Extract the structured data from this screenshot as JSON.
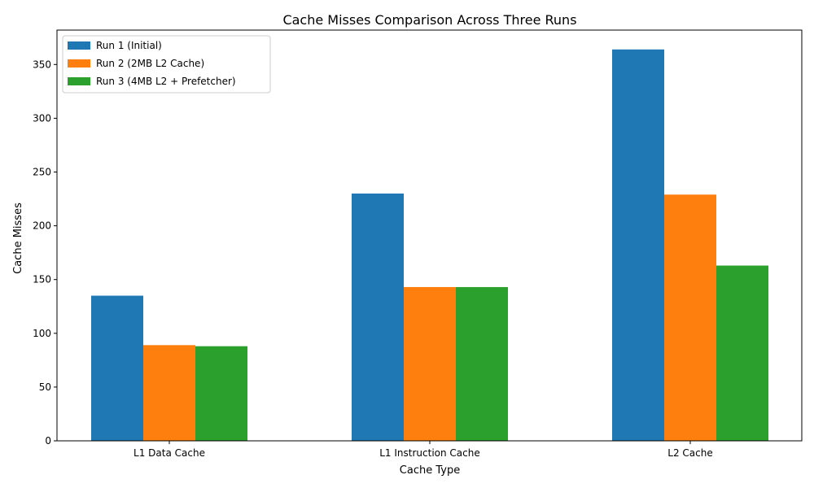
{
  "chart_data": {
    "type": "bar",
    "title": "Cache Misses Comparison Across Three Runs",
    "xlabel": "Cache Type",
    "ylabel": "Cache Misses",
    "categories": [
      "L1 Data Cache",
      "L1 Instruction Cache",
      "L2 Cache"
    ],
    "series": [
      {
        "name": "Run 1 (Initial)",
        "color": "#1f77b4",
        "values": [
          135,
          230,
          364
        ]
      },
      {
        "name": "Run 2 (2MB L2 Cache)",
        "color": "#ff7f0e",
        "values": [
          89,
          143,
          229
        ]
      },
      {
        "name": "Run 3 (4MB L2 + Prefetcher)",
        "color": "#2ca02c",
        "values": [
          88,
          143,
          163
        ]
      }
    ],
    "ylim": [
      0,
      382
    ],
    "yticks": [
      0,
      50,
      100,
      150,
      200,
      250,
      300,
      350
    ],
    "grid": false,
    "legend_position": "top-left"
  }
}
